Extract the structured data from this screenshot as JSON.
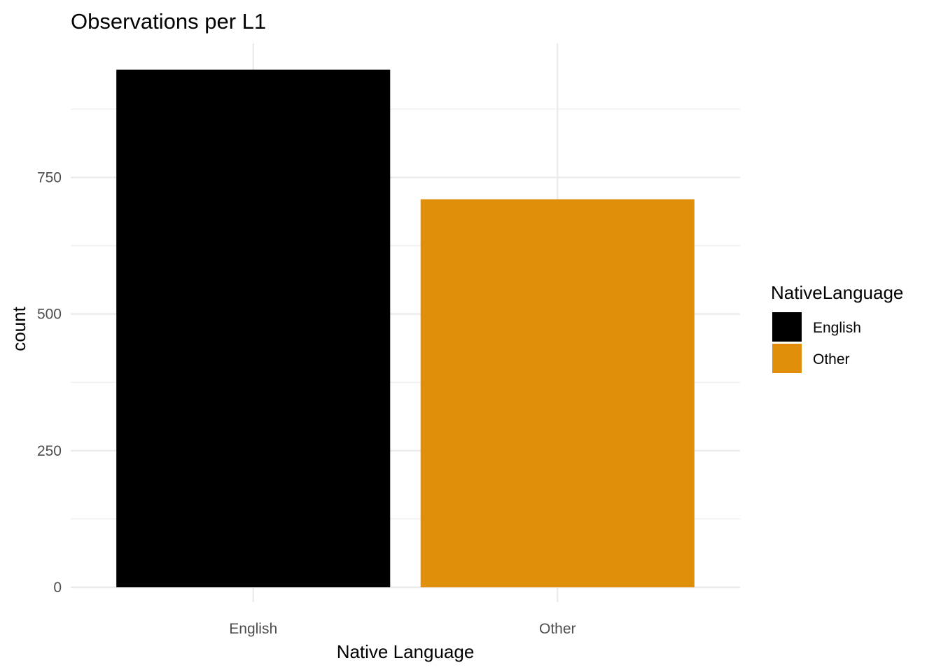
{
  "chart_data": {
    "type": "bar",
    "title": "Observations per L1",
    "xlabel": "Native Language",
    "ylabel": "count",
    "categories": [
      "English",
      "Other"
    ],
    "values": [
      947,
      710
    ],
    "colors": [
      "#000000",
      "#E08F0B"
    ],
    "ylim": [
      0,
      1000
    ],
    "yticks": [
      0,
      250,
      500,
      750
    ],
    "grid": true,
    "legend": {
      "title": "NativeLanguage",
      "placement": "right",
      "entries": [
        {
          "label": "English",
          "color": "#000000"
        },
        {
          "label": "Other",
          "color": "#E08F0B"
        }
      ]
    }
  }
}
